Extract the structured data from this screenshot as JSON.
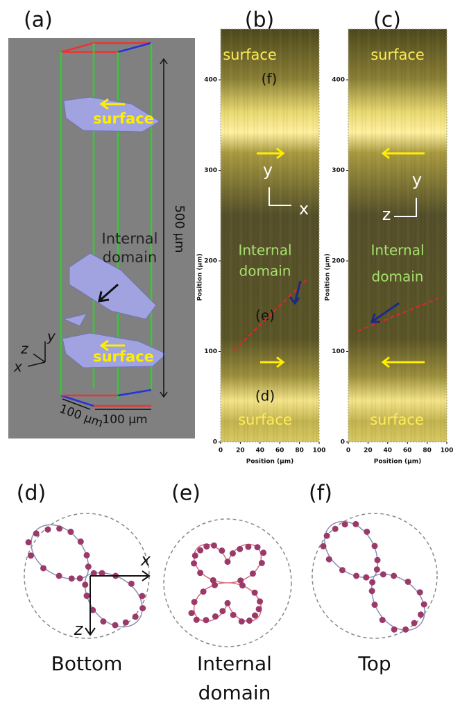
{
  "panel_a": {
    "label": "(a)",
    "axes": [
      "y",
      "z",
      "x"
    ],
    "annotations": [
      "surface",
      "Internal",
      "domain",
      "surface"
    ],
    "scale_labels": [
      "500 μm",
      "100 μm",
      "100 μm"
    ]
  },
  "panel_b": {
    "label": "(b)",
    "y_axis_label": "Position (μm)",
    "x_axis_label": "Position (μm)",
    "ylim": [
      0,
      456
    ],
    "yticks": [
      0,
      100,
      200,
      300,
      400
    ],
    "xlim": [
      0,
      100
    ],
    "xticks": [
      0,
      20,
      40,
      60,
      80,
      100
    ],
    "axes": [
      "y",
      "x"
    ],
    "annotations": [
      "surface",
      "(f)",
      "Internal",
      "domain",
      "(e)",
      "(d)",
      "surface"
    ]
  },
  "panel_c": {
    "label": "(c)",
    "y_axis_label": "Position (μm)",
    "x_axis_label": "Position (μm)",
    "ylim": [
      0,
      456
    ],
    "yticks": [
      0,
      100,
      200,
      300,
      400
    ],
    "xlim": [
      0,
      100
    ],
    "xticks": [
      0,
      20,
      40,
      60,
      80,
      100
    ],
    "axes": [
      "y",
      "z"
    ],
    "annotations": [
      "surface",
      "Internal",
      "domain",
      "surface"
    ]
  },
  "panel_d": {
    "label": "(d)",
    "caption": "Bottom",
    "axes": [
      "x",
      "z"
    ]
  },
  "panel_e": {
    "label": "(e)",
    "caption": [
      "Internal",
      "domain"
    ]
  },
  "panel_f": {
    "label": "(f)",
    "caption": "Top"
  }
}
